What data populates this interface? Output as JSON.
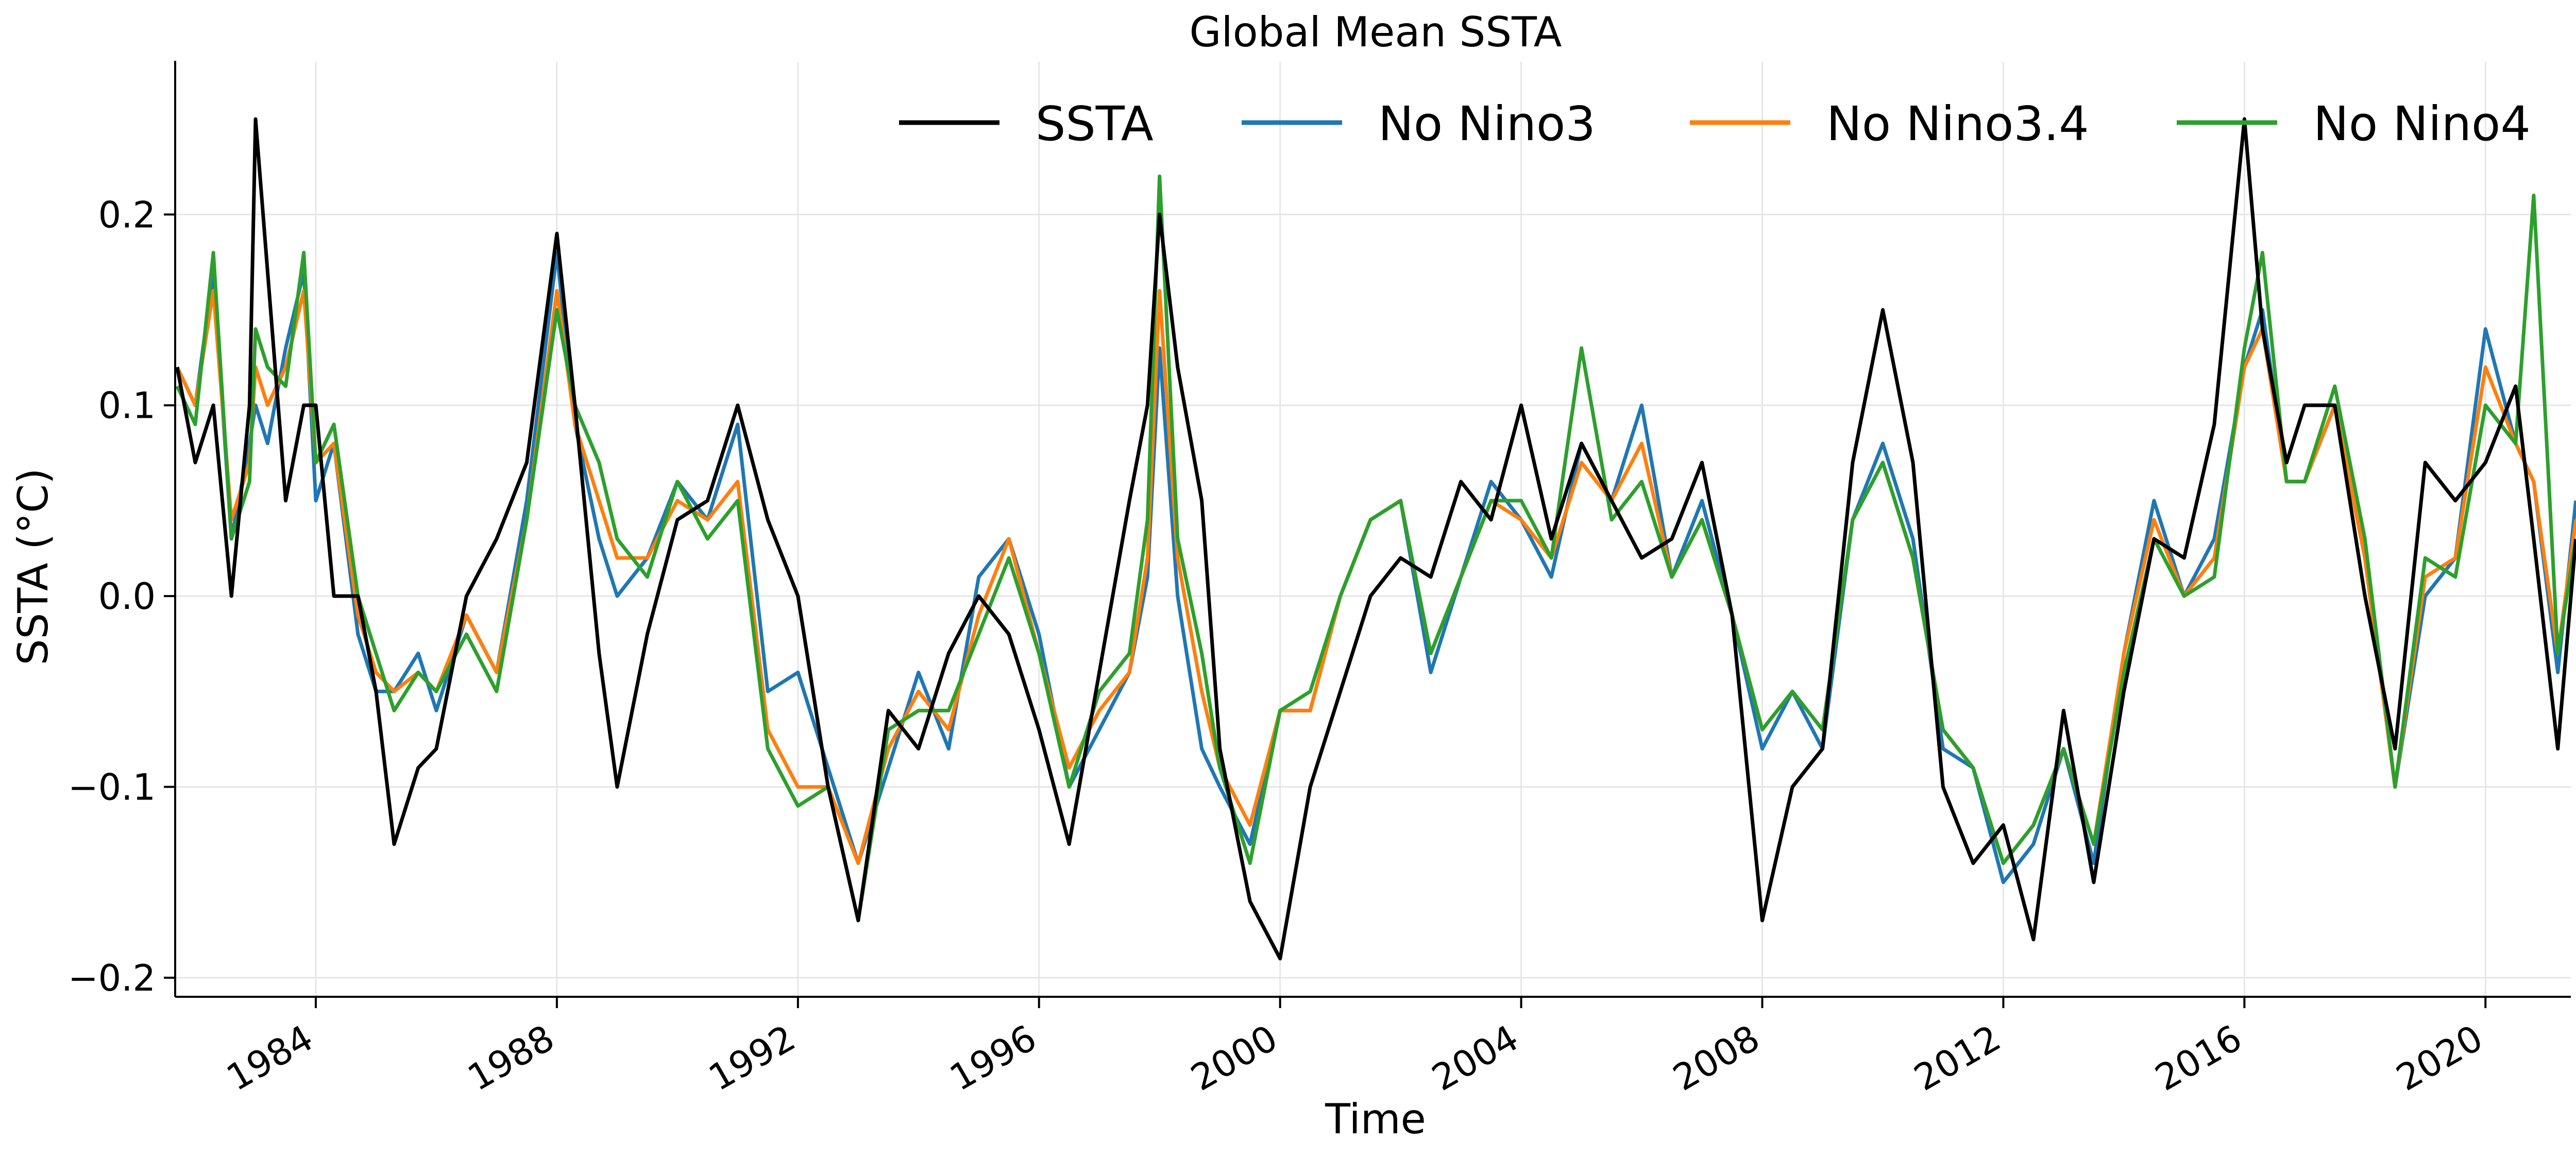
{
  "chart_data": {
    "type": "line",
    "title": "Global Mean SSTA",
    "xlabel": "Time",
    "ylabel": "SSTA (°C)",
    "xlim": [
      "1981-09",
      "2021-06"
    ],
    "ylim": [
      -0.21,
      0.28
    ],
    "x_ticks": [
      "1984",
      "1988",
      "1992",
      "1996",
      "2000",
      "2004",
      "2008",
      "2012",
      "2016",
      "2020"
    ],
    "y_ticks": [
      "−0.2",
      "−0.1",
      "0.0",
      "0.1",
      "0.2"
    ],
    "grid": true,
    "legend_position": "top-right",
    "x": [
      "1981.7",
      "1982.0",
      "1982.3",
      "1982.6",
      "1982.9",
      "1983.0",
      "1983.2",
      "1983.5",
      "1983.8",
      "1984.0",
      "1984.3",
      "1984.7",
      "1985.0",
      "1985.3",
      "1985.7",
      "1986.0",
      "1986.5",
      "1987.0",
      "1987.5",
      "1988.0",
      "1988.3",
      "1988.7",
      "1989.0",
      "1989.5",
      "1990.0",
      "1990.5",
      "1991.0",
      "1991.5",
      "1992.0",
      "1992.5",
      "1993.0",
      "1993.5",
      "1994.0",
      "1994.5",
      "1995.0",
      "1995.5",
      "1996.0",
      "1996.5",
      "1997.0",
      "1997.5",
      "1997.8",
      "1998.0",
      "1998.3",
      "1998.7",
      "1999.0",
      "1999.5",
      "2000.0",
      "2000.5",
      "2001.0",
      "2001.5",
      "2002.0",
      "2002.5",
      "2003.0",
      "2003.5",
      "2004.0",
      "2004.5",
      "2005.0",
      "2005.5",
      "2006.0",
      "2006.5",
      "2007.0",
      "2007.5",
      "2008.0",
      "2008.5",
      "2009.0",
      "2009.5",
      "2010.0",
      "2010.5",
      "2011.0",
      "2011.5",
      "2012.0",
      "2012.5",
      "2013.0",
      "2013.5",
      "2014.0",
      "2014.5",
      "2015.0",
      "2015.5",
      "2016.0",
      "2016.3",
      "2016.7",
      "2017.0",
      "2017.5",
      "2018.0",
      "2018.5",
      "2019.0",
      "2019.5",
      "2020.0",
      "2020.5",
      "2020.8",
      "2021.2",
      "2021.5"
    ],
    "series": [
      {
        "name": "SSTA",
        "color": "#000000",
        "values": [
          0.12,
          0.07,
          0.1,
          0.0,
          0.1,
          0.25,
          0.17,
          0.05,
          0.1,
          0.1,
          0.0,
          0.0,
          -0.05,
          -0.13,
          -0.09,
          -0.08,
          0.0,
          0.03,
          0.07,
          0.19,
          0.1,
          -0.03,
          -0.1,
          -0.02,
          0.04,
          0.05,
          0.1,
          0.04,
          0.0,
          -0.1,
          -0.17,
          -0.06,
          -0.08,
          -0.03,
          0.0,
          -0.02,
          -0.07,
          -0.13,
          -0.04,
          0.05,
          0.1,
          0.2,
          0.12,
          0.05,
          -0.08,
          -0.16,
          -0.19,
          -0.1,
          -0.05,
          0.0,
          0.02,
          0.01,
          0.06,
          0.04,
          0.1,
          0.03,
          0.08,
          0.05,
          0.02,
          0.03,
          0.07,
          -0.01,
          -0.17,
          -0.1,
          -0.08,
          0.07,
          0.15,
          0.07,
          -0.1,
          -0.14,
          -0.12,
          -0.18,
          -0.06,
          -0.15,
          -0.05,
          0.03,
          0.02,
          0.09,
          0.25,
          0.14,
          0.07,
          0.1,
          0.1,
          0.0,
          -0.08,
          0.07,
          0.05,
          0.07,
          0.11,
          0.03,
          -0.08,
          0.03
        ]
      },
      {
        "name": "No Nino3",
        "color": "#1f77b4",
        "values": [
          0.12,
          0.1,
          0.17,
          0.03,
          0.08,
          0.1,
          0.08,
          0.13,
          0.17,
          0.05,
          0.08,
          -0.02,
          -0.05,
          -0.05,
          -0.03,
          -0.06,
          -0.01,
          -0.04,
          0.05,
          0.18,
          0.09,
          0.03,
          0.0,
          0.02,
          0.06,
          0.04,
          0.09,
          -0.05,
          -0.04,
          -0.09,
          -0.14,
          -0.09,
          -0.04,
          -0.08,
          0.01,
          0.03,
          -0.02,
          -0.1,
          -0.07,
          -0.04,
          0.01,
          0.13,
          0.0,
          -0.08,
          -0.1,
          -0.13,
          -0.06,
          -0.06,
          0.0,
          0.04,
          0.05,
          -0.04,
          0.01,
          0.06,
          0.04,
          0.01,
          0.08,
          0.05,
          0.1,
          0.01,
          0.05,
          -0.01,
          -0.08,
          -0.05,
          -0.08,
          0.04,
          0.08,
          0.03,
          -0.08,
          -0.09,
          -0.15,
          -0.13,
          -0.08,
          -0.14,
          -0.03,
          0.05,
          0.0,
          0.03,
          0.12,
          0.15,
          0.06,
          0.06,
          0.1,
          0.02,
          -0.1,
          0.0,
          0.02,
          0.14,
          0.08,
          0.06,
          -0.04,
          0.05
        ]
      },
      {
        "name": "No Nino3.4",
        "color": "#ff7f0e",
        "values": [
          0.12,
          0.1,
          0.16,
          0.04,
          0.07,
          0.12,
          0.1,
          0.12,
          0.16,
          0.07,
          0.08,
          -0.01,
          -0.04,
          -0.05,
          -0.04,
          -0.05,
          -0.01,
          -0.04,
          0.04,
          0.16,
          0.09,
          0.05,
          0.02,
          0.02,
          0.05,
          0.04,
          0.06,
          -0.07,
          -0.1,
          -0.1,
          -0.14,
          -0.08,
          -0.05,
          -0.07,
          -0.01,
          0.03,
          -0.03,
          -0.09,
          -0.06,
          -0.04,
          0.02,
          0.16,
          0.02,
          -0.05,
          -0.09,
          -0.12,
          -0.06,
          -0.06,
          0.0,
          0.04,
          0.05,
          -0.03,
          0.01,
          0.05,
          0.04,
          0.02,
          0.07,
          0.05,
          0.08,
          0.01,
          0.04,
          -0.01,
          -0.07,
          -0.05,
          -0.07,
          0.04,
          0.07,
          0.02,
          -0.07,
          -0.09,
          -0.14,
          -0.12,
          -0.08,
          -0.13,
          -0.03,
          0.04,
          0.0,
          0.02,
          0.12,
          0.14,
          0.06,
          0.06,
          0.1,
          0.02,
          -0.1,
          0.01,
          0.02,
          0.12,
          0.08,
          0.06,
          -0.03,
          0.04
        ]
      },
      {
        "name": "No Nino4",
        "color": "#2ca02c",
        "values": [
          0.11,
          0.09,
          0.18,
          0.03,
          0.06,
          0.14,
          0.12,
          0.11,
          0.18,
          0.07,
          0.09,
          0.0,
          -0.03,
          -0.06,
          -0.04,
          -0.05,
          -0.02,
          -0.05,
          0.04,
          0.15,
          0.1,
          0.07,
          0.03,
          0.01,
          0.06,
          0.03,
          0.05,
          -0.08,
          -0.11,
          -0.1,
          -0.17,
          -0.07,
          -0.06,
          -0.06,
          -0.02,
          0.02,
          -0.03,
          -0.1,
          -0.05,
          -0.03,
          0.04,
          0.22,
          0.03,
          -0.03,
          -0.09,
          -0.14,
          -0.06,
          -0.05,
          0.0,
          0.04,
          0.05,
          -0.03,
          0.01,
          0.05,
          0.05,
          0.02,
          0.13,
          0.04,
          0.06,
          0.01,
          0.04,
          -0.01,
          -0.07,
          -0.05,
          -0.07,
          0.04,
          0.07,
          0.02,
          -0.07,
          -0.09,
          -0.14,
          -0.12,
          -0.08,
          -0.13,
          -0.04,
          0.03,
          0.0,
          0.01,
          0.13,
          0.18,
          0.06,
          0.06,
          0.11,
          0.03,
          -0.1,
          0.02,
          0.01,
          0.1,
          0.08,
          0.21,
          -0.03,
          0.03
        ]
      }
    ]
  }
}
